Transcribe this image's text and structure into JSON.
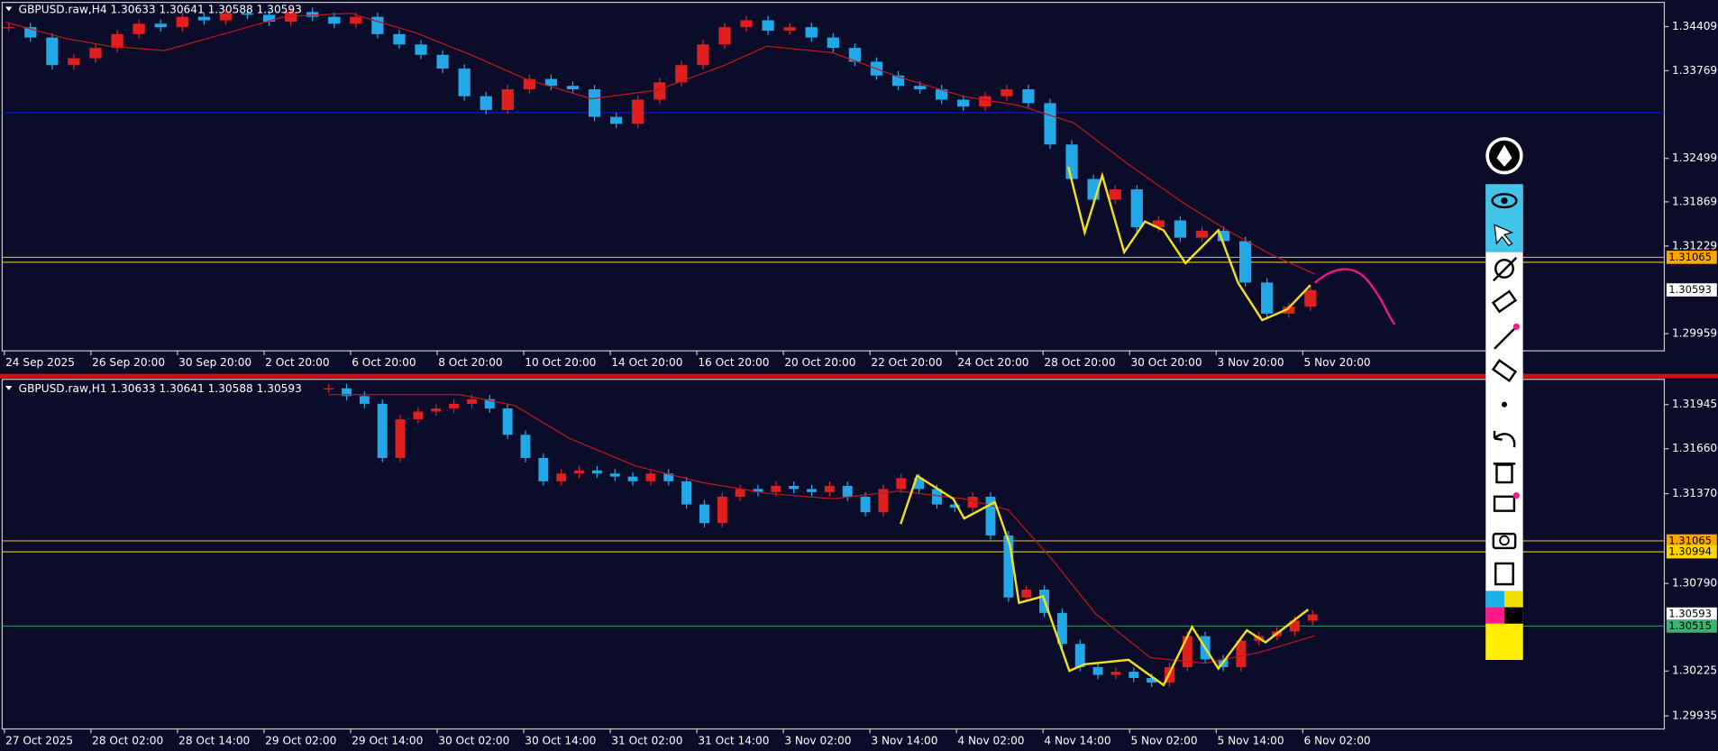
{
  "panels": [
    {
      "title": "GBPUSD.raw,H4  1.30633 1.30641 1.30588 1.30593",
      "ylim": [
        1.2971,
        1.3476
      ],
      "yticks": [
        1.34409,
        1.33769,
        1.32499,
        1.31869,
        1.31229,
        1.29959
      ],
      "time_labels": [
        "24 Sep 2025",
        "26 Sep 20:00",
        "30 Sep 20:00",
        "2 Oct 20:00",
        "6 Oct 20:00",
        "8 Oct 20:00",
        "10 Oct 20:00",
        "14 Oct 20:00",
        "16 Oct 20:00",
        "20 Oct 20:00",
        "22 Oct 20:00",
        "24 Oct 20:00",
        "28 Oct 20:00",
        "30 Oct 20:00",
        "3 Nov 20:00",
        "5 Nov 20:00"
      ],
      "levels": [
        {
          "value": 1.3316,
          "color": "#1010ff"
        },
        {
          "value": 1.31065,
          "color": "#d4b020",
          "tag": "#ffa500"
        },
        {
          "value": 1.30994,
          "color": "#d4b020"
        },
        {
          "value": 1.30593,
          "tag": "#ffffff"
        }
      ],
      "closes": [
        1.344,
        1.3425,
        1.3385,
        1.3395,
        1.341,
        1.343,
        1.3445,
        1.344,
        1.3455,
        1.345,
        1.346,
        1.3458,
        1.3448,
        1.3462,
        1.3455,
        1.3445,
        1.3455,
        1.343,
        1.3415,
        1.34,
        1.338,
        1.334,
        1.332,
        1.335,
        1.3365,
        1.3355,
        1.335,
        1.331,
        1.33,
        1.3335,
        1.336,
        1.3385,
        1.3415,
        1.344,
        1.345,
        1.3435,
        1.344,
        1.3425,
        1.341,
        1.339,
        1.337,
        1.3355,
        1.335,
        1.3335,
        1.3325,
        1.334,
        1.335,
        1.333,
        1.327,
        1.322,
        1.319,
        1.3205,
        1.315,
        1.316,
        1.3135,
        1.3145,
        1.313,
        1.307,
        1.3025,
        1.3035,
        1.3059
      ]
    },
    {
      "title": "GBPUSD.raw,H1  1.30633 1.30641 1.30588 1.30593",
      "ylim": [
        1.29851,
        1.32108
      ],
      "yticks": [
        1.31945,
        {
          "value": 1.3166,
          "label": "1.31660"
        },
        {
          "value": 1.3137,
          "label": "1.31370"
        },
        {
          "value": 1.3079,
          "label": "1.30790"
        },
        1.30225,
        1.29935
      ],
      "time_labels": [
        "27 Oct 2025",
        "28 Oct 02:00",
        "28 Oct 14:00",
        "29 Oct 02:00",
        "29 Oct 14:00",
        "30 Oct 02:00",
        "30 Oct 14:00",
        "31 Oct 02:00",
        "31 Oct 14:00",
        "3 Nov 02:00",
        "3 Nov 14:00",
        "4 Nov 02:00",
        "4 Nov 14:00",
        "5 Nov 02:00",
        "5 Nov 14:00",
        "6 Nov 02:00"
      ],
      "levels": [
        {
          "value": 1.31065,
          "color": "#d4b020",
          "tag": "#ffa500"
        },
        {
          "value": 1.30994,
          "color": "#d4b020",
          "tag": "#ffd700"
        },
        {
          "value": 1.30593,
          "tag": "#ffffff"
        },
        {
          "value": 1.30515,
          "color": "#2e8b57",
          "tag": "#3cb371"
        }
      ],
      "closes": [
        1.3205,
        1.32,
        1.3195,
        1.316,
        1.3185,
        1.319,
        1.3192,
        1.3195,
        1.3198,
        1.3192,
        1.3175,
        1.316,
        1.3145,
        1.315,
        1.3152,
        1.315,
        1.3148,
        1.3145,
        1.315,
        1.3145,
        1.313,
        1.3118,
        1.3135,
        1.314,
        1.3138,
        1.3142,
        1.314,
        1.3138,
        1.3142,
        1.3135,
        1.3125,
        1.314,
        1.3147,
        1.314,
        1.313,
        1.3128,
        1.3135,
        1.311,
        1.307,
        1.3075,
        1.306,
        1.304,
        1.3025,
        1.302,
        1.3022,
        1.3018,
        1.3015,
        1.3025,
        1.3045,
        1.303,
        1.3025,
        1.3042,
        1.3045,
        1.3048,
        1.3055,
        1.3059
      ]
    }
  ]
}
